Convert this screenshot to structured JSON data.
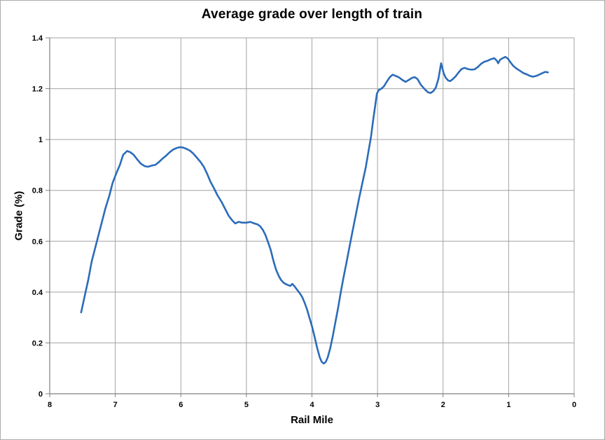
{
  "chart_data": {
    "type": "line",
    "title": "Average grade over length of train",
    "xlabel": "Rail Mile",
    "ylabel": "Grade (%)",
    "xlim": [
      8,
      0
    ],
    "ylim": [
      0,
      1.4
    ],
    "grid": true,
    "legend_position": "none",
    "colors": {
      "series_blue": "#2b6cba",
      "gridline_gray": "#a3a3a3",
      "axis_gray": "#808080",
      "text_black": "#000000",
      "background": "#ffffff"
    },
    "x_ticks": {
      "values": [
        8,
        7,
        6,
        5,
        4,
        3,
        2,
        1,
        0
      ],
      "labels": [
        "8",
        "7",
        "6",
        "5",
        "4",
        "3",
        "2",
        "1",
        "0"
      ]
    },
    "y_ticks": {
      "values": [
        0,
        0.2,
        0.4,
        0.6,
        0.8,
        1,
        1.2,
        1.4
      ],
      "labels": [
        "0",
        "0.2",
        "0.4",
        "0.6",
        "0.8",
        "1",
        "1.2",
        "1.4"
      ]
    },
    "series": [
      {
        "color": "#2b6cba",
        "x": [
          7.52,
          7.47,
          7.41,
          7.36,
          7.31,
          7.25,
          7.2,
          7.15,
          7.09,
          7.04,
          6.98,
          6.93,
          6.88,
          6.82,
          6.77,
          6.72,
          6.66,
          6.61,
          6.55,
          6.5,
          6.44,
          6.39,
          6.34,
          6.28,
          6.23,
          6.17,
          6.12,
          6.06,
          6.01,
          5.96,
          5.91,
          5.86,
          5.81,
          5.76,
          5.7,
          5.65,
          5.6,
          5.55,
          5.49,
          5.44,
          5.38,
          5.33,
          5.27,
          5.22,
          5.17,
          5.12,
          5.06,
          5.0,
          4.94,
          4.88,
          4.83,
          4.79,
          4.75,
          4.71,
          4.67,
          4.63,
          4.59,
          4.55,
          4.51,
          4.47,
          4.43,
          4.38,
          4.33,
          4.3,
          4.27,
          4.23,
          4.19,
          4.15,
          4.11,
          4.07,
          4.04,
          4.0,
          3.96,
          3.92,
          3.88,
          3.85,
          3.82,
          3.79,
          3.76,
          3.72,
          3.68,
          3.64,
          3.6,
          3.56,
          3.52,
          3.47,
          3.43,
          3.38,
          3.33,
          3.28,
          3.23,
          3.18,
          3.14,
          3.1,
          3.07,
          3.04,
          3.01,
          2.98,
          2.94,
          2.9,
          2.86,
          2.81,
          2.77,
          2.72,
          2.67,
          2.62,
          2.57,
          2.52,
          2.47,
          2.43,
          2.39,
          2.34,
          2.28,
          2.23,
          2.19,
          2.15,
          2.11,
          2.07,
          2.04,
          2.03,
          2.01,
          1.99,
          1.96,
          1.92,
          1.89,
          1.85,
          1.81,
          1.77,
          1.72,
          1.67,
          1.62,
          1.57,
          1.52,
          1.47,
          1.42,
          1.37,
          1.32,
          1.27,
          1.22,
          1.18,
          1.16,
          1.13,
          1.09,
          1.05,
          1.01,
          0.97,
          0.93,
          0.88,
          0.83,
          0.78,
          0.73,
          0.68,
          0.63,
          0.58,
          0.53,
          0.48,
          0.44,
          0.4
        ],
        "y": [
          0.32,
          0.38,
          0.45,
          0.52,
          0.57,
          0.63,
          0.68,
          0.73,
          0.78,
          0.83,
          0.87,
          0.9,
          0.94,
          0.955,
          0.95,
          0.94,
          0.92,
          0.905,
          0.895,
          0.893,
          0.898,
          0.9,
          0.91,
          0.925,
          0.935,
          0.95,
          0.96,
          0.967,
          0.97,
          0.968,
          0.963,
          0.956,
          0.945,
          0.93,
          0.912,
          0.893,
          0.866,
          0.835,
          0.806,
          0.78,
          0.755,
          0.73,
          0.7,
          0.683,
          0.67,
          0.676,
          0.673,
          0.673,
          0.676,
          0.67,
          0.666,
          0.659,
          0.645,
          0.625,
          0.596,
          0.567,
          0.525,
          0.49,
          0.465,
          0.447,
          0.436,
          0.429,
          0.424,
          0.432,
          0.424,
          0.41,
          0.397,
          0.381,
          0.357,
          0.328,
          0.3,
          0.266,
          0.225,
          0.18,
          0.143,
          0.125,
          0.119,
          0.125,
          0.143,
          0.18,
          0.23,
          0.285,
          0.34,
          0.4,
          0.455,
          0.52,
          0.575,
          0.64,
          0.705,
          0.77,
          0.83,
          0.89,
          0.95,
          1.01,
          1.07,
          1.125,
          1.18,
          1.195,
          1.2,
          1.21,
          1.227,
          1.246,
          1.255,
          1.25,
          1.244,
          1.234,
          1.227,
          1.235,
          1.243,
          1.245,
          1.238,
          1.216,
          1.198,
          1.186,
          1.183,
          1.19,
          1.205,
          1.24,
          1.285,
          1.3,
          1.28,
          1.26,
          1.243,
          1.232,
          1.23,
          1.238,
          1.248,
          1.262,
          1.277,
          1.282,
          1.277,
          1.275,
          1.276,
          1.285,
          1.298,
          1.306,
          1.31,
          1.316,
          1.32,
          1.31,
          1.3,
          1.314,
          1.32,
          1.325,
          1.318,
          1.303,
          1.29,
          1.279,
          1.271,
          1.262,
          1.257,
          1.251,
          1.247,
          1.25,
          1.256,
          1.262,
          1.266,
          1.264
        ]
      }
    ]
  }
}
